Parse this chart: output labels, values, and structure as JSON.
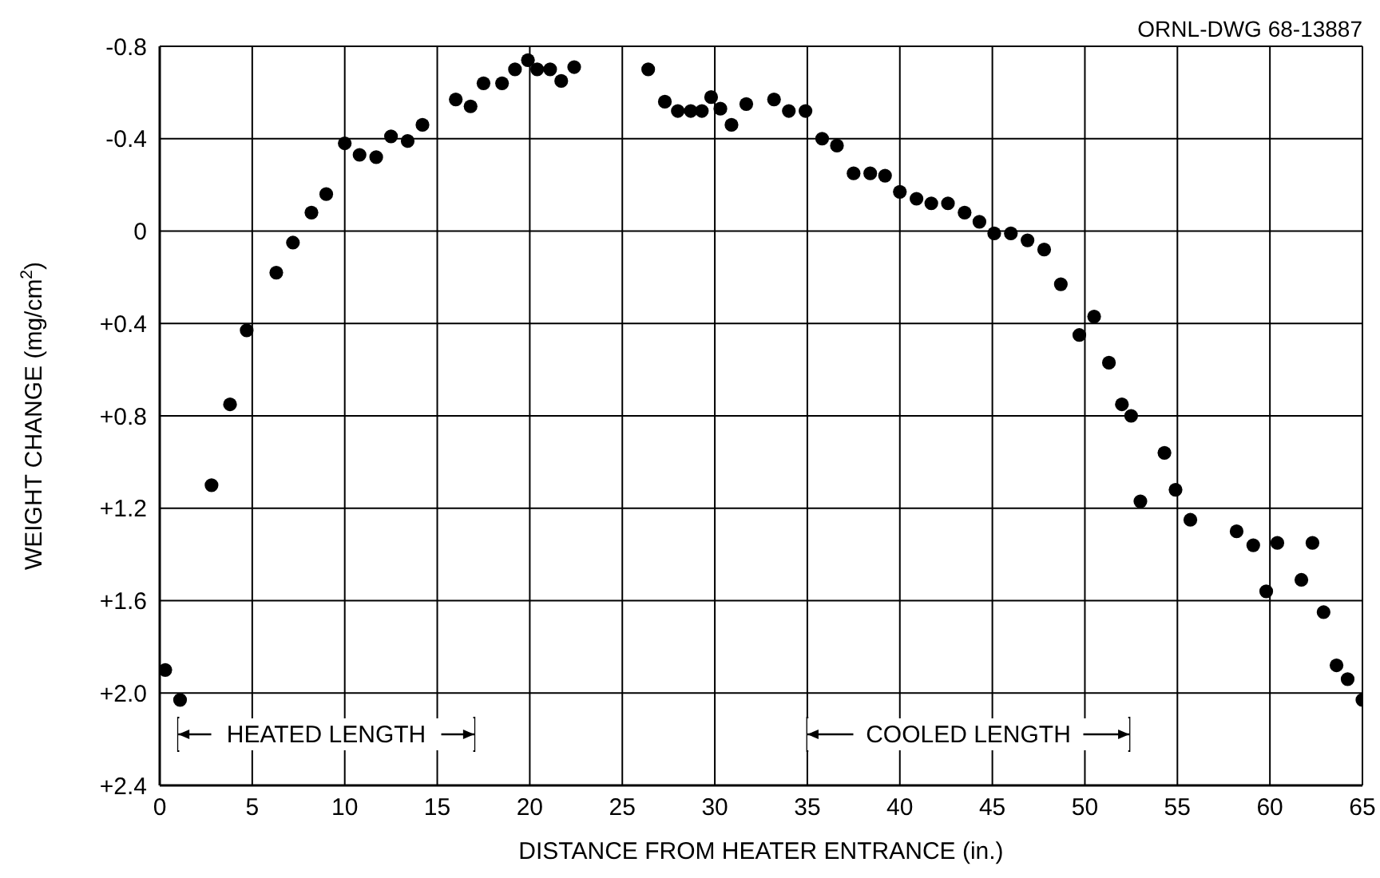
{
  "chart_data": {
    "type": "scatter",
    "xlabel": "DISTANCE FROM HEATER ENTRANCE (in.)",
    "ylabel": "WEIGHT CHANGE (mg/cm$^{2}$)",
    "annotations": [
      "ORNL-DWG 68-13887"
    ],
    "x": [
      0.3,
      1.1,
      2.8,
      3.8,
      4.7,
      6.3,
      7.2,
      8.2,
      9.0,
      10.0,
      10.8,
      11.7,
      12.5,
      13.4,
      14.2,
      16.0,
      16.8,
      17.5,
      18.5,
      19.2,
      19.9,
      20.4,
      21.1,
      21.7,
      22.4,
      26.4,
      27.3,
      28.0,
      28.7,
      29.3,
      29.8,
      30.3,
      30.9,
      31.7,
      33.2,
      34.0,
      34.9,
      35.8,
      36.6,
      37.5,
      38.4,
      39.2,
      40.0,
      40.9,
      41.7,
      42.6,
      43.5,
      44.3,
      45.1,
      46.0,
      46.9,
      47.8,
      48.7,
      49.7,
      50.5,
      51.3,
      52.0,
      52.5,
      53.0,
      54.3,
      54.9,
      55.7,
      58.2,
      59.1,
      59.8,
      60.4,
      61.7,
      62.3,
      62.9,
      63.6,
      64.2,
      65.0
    ],
    "series": [
      {
        "color": "#000000",
        "values": [
          1.9,
          2.03,
          1.1,
          0.75,
          0.43,
          0.18,
          0.05,
          -0.08,
          -0.16,
          -0.38,
          -0.33,
          -0.32,
          -0.41,
          -0.39,
          -0.46,
          -0.57,
          -0.54,
          -0.64,
          -0.64,
          -0.7,
          -0.74,
          -0.7,
          -0.7,
          -0.65,
          -0.71,
          -0.7,
          -0.56,
          -0.52,
          -0.52,
          -0.52,
          -0.58,
          -0.53,
          -0.46,
          -0.55,
          -0.57,
          -0.52,
          -0.52,
          -0.4,
          -0.37,
          -0.25,
          -0.25,
          -0.24,
          -0.17,
          -0.14,
          -0.12,
          -0.12,
          -0.08,
          -0.04,
          0.01,
          0.01,
          0.04,
          0.08,
          0.23,
          0.45,
          0.37,
          0.57,
          0.75,
          0.8,
          1.17,
          0.96,
          1.12,
          1.25,
          1.3,
          1.36,
          1.56,
          1.35,
          1.51,
          1.35,
          1.65,
          1.88,
          1.94,
          2.03
        ]
      }
    ],
    "xlim": [
      0,
      65
    ],
    "xticks": [
      0,
      5,
      10,
      15,
      20,
      25,
      30,
      35,
      40,
      45,
      50,
      55,
      60,
      65
    ],
    "ylim": [
      2.4,
      -0.8
    ],
    "yticks": [
      {
        "value": -0.8,
        "label": "-0.8"
      },
      {
        "value": -0.4,
        "label": "-0.4"
      },
      0,
      {
        "value": 0.4,
        "label": "+0.4"
      },
      {
        "value": 0.8,
        "label": "+0.8"
      },
      {
        "value": 1.2,
        "label": "+1.2"
      },
      {
        "value": 1.6,
        "label": "+1.6"
      },
      {
        "value": 2.0,
        "label": "+2.0"
      },
      {
        "value": 2.4,
        "label": "+2.4"
      }
    ],
    "bands": [
      {
        "axis": "x",
        "from": 1,
        "to": 17,
        "label": "HEATED LENGTH",
        "color": "#ffffff"
      },
      {
        "axis": "x",
        "from": 35,
        "to": 52.4,
        "label": "COOLED LENGTH",
        "color": "#ffffff"
      }
    ],
    "grid": true,
    "marker": "circle"
  }
}
